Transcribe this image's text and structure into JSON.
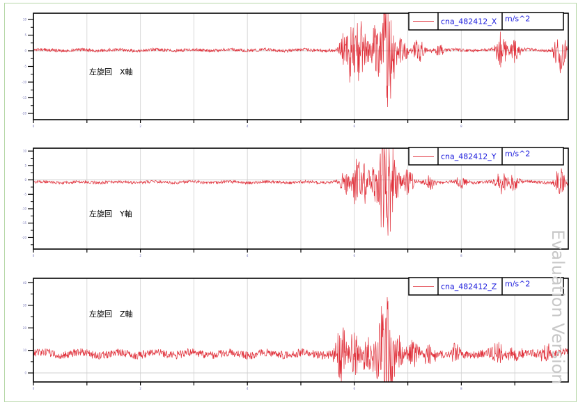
{
  "chart_data": [
    {
      "type": "line",
      "series": [
        {
          "name": "cna_482412_X",
          "color": "#e0303a"
        }
      ],
      "unit": "m/s^2",
      "annotation": "左旋回　X軸",
      "ylim": [
        -22,
        12
      ],
      "yticks": [
        "10",
        "5",
        "0",
        "-5",
        "-10",
        "-15",
        "-20"
      ],
      "ytick_values": [
        10,
        5,
        0,
        -5,
        -10,
        -15,
        -20
      ],
      "xlim": [
        0,
        100
      ],
      "xticks": [
        "0",
        "",
        "2",
        "",
        "4",
        "",
        "6",
        "",
        "8",
        ""
      ],
      "xtick_values": [
        0,
        10,
        20,
        30,
        40,
        50,
        60,
        70,
        80,
        90
      ],
      "grid": true,
      "legend": "top-right",
      "baseline": 0.2,
      "noise": 0.5,
      "events": [
        {
          "x": 58.5,
          "amp": 7
        },
        {
          "x": 60,
          "amp": 10
        },
        {
          "x": 61.5,
          "amp": 8
        },
        {
          "x": 64,
          "amp": 9
        },
        {
          "x": 66,
          "amp": 20
        },
        {
          "x": 67,
          "amp": 8
        },
        {
          "x": 69,
          "amp": 5
        },
        {
          "x": 72,
          "amp": 4
        },
        {
          "x": 76,
          "amp": 2
        },
        {
          "x": 87.5,
          "amp": 6
        },
        {
          "x": 90,
          "amp": 4
        },
        {
          "x": 98.5,
          "amp": 8
        }
      ]
    },
    {
      "type": "line",
      "series": [
        {
          "name": "cna_482412_Y",
          "color": "#e0303a"
        }
      ],
      "unit": "m/s^2",
      "annotation": "左旋回　Y軸",
      "ylim": [
        -24,
        11
      ],
      "yticks": [
        "10",
        "5",
        "0",
        "-5",
        "-10",
        "-15",
        "-20"
      ],
      "ytick_values": [
        10,
        5,
        0,
        -5,
        -10,
        -15,
        -20
      ],
      "xlim": [
        0,
        100
      ],
      "xticks": [
        "0",
        "",
        "2",
        "",
        "4",
        "",
        "6",
        "",
        "8",
        ""
      ],
      "xtick_values": [
        0,
        10,
        20,
        30,
        40,
        50,
        60,
        70,
        80,
        90
      ],
      "grid": true,
      "legend": "top-right",
      "baseline": -0.8,
      "noise": 0.5,
      "events": [
        {
          "x": 58.5,
          "amp": 5
        },
        {
          "x": 60.5,
          "amp": 9
        },
        {
          "x": 62,
          "amp": 7
        },
        {
          "x": 64.5,
          "amp": 10
        },
        {
          "x": 66,
          "amp": 22
        },
        {
          "x": 67.5,
          "amp": 9
        },
        {
          "x": 70,
          "amp": 5
        },
        {
          "x": 74,
          "amp": 3
        },
        {
          "x": 80,
          "amp": 2
        },
        {
          "x": 87.5,
          "amp": 4
        },
        {
          "x": 90,
          "amp": 3
        },
        {
          "x": 98.5,
          "amp": 5
        }
      ]
    },
    {
      "type": "line",
      "series": [
        {
          "name": "cna_482412_Z",
          "color": "#e0303a"
        }
      ],
      "unit": "m/s^2",
      "annotation": "左旋回　Z軸",
      "ylim": [
        -4,
        42
      ],
      "yticks": [
        "40",
        "30",
        "20",
        "10",
        "0"
      ],
      "ytick_values": [
        40,
        30,
        20,
        10,
        0
      ],
      "xlim": [
        0,
        100
      ],
      "xticks": [
        "0",
        "",
        "2",
        "",
        "4",
        "",
        "6",
        "",
        "8",
        ""
      ],
      "xtick_values": [
        0,
        10,
        20,
        30,
        40,
        50,
        60,
        70,
        80,
        90
      ],
      "grid": true,
      "legend": "top-right",
      "baseline": 8.5,
      "noise": 1.8,
      "events": [
        {
          "x": 57.5,
          "amp": 12
        },
        {
          "x": 60,
          "amp": 10
        },
        {
          "x": 62.5,
          "amp": 7
        },
        {
          "x": 64.5,
          "amp": 14
        },
        {
          "x": 66,
          "amp": 32
        },
        {
          "x": 68,
          "amp": 10
        },
        {
          "x": 71,
          "amp": 6
        },
        {
          "x": 74,
          "amp": 5
        },
        {
          "x": 79,
          "amp": 4
        },
        {
          "x": 86.5,
          "amp": 6
        },
        {
          "x": 90,
          "amp": 4
        },
        {
          "x": 96,
          "amp": 4
        }
      ]
    }
  ],
  "watermark": "Evaluation Version"
}
